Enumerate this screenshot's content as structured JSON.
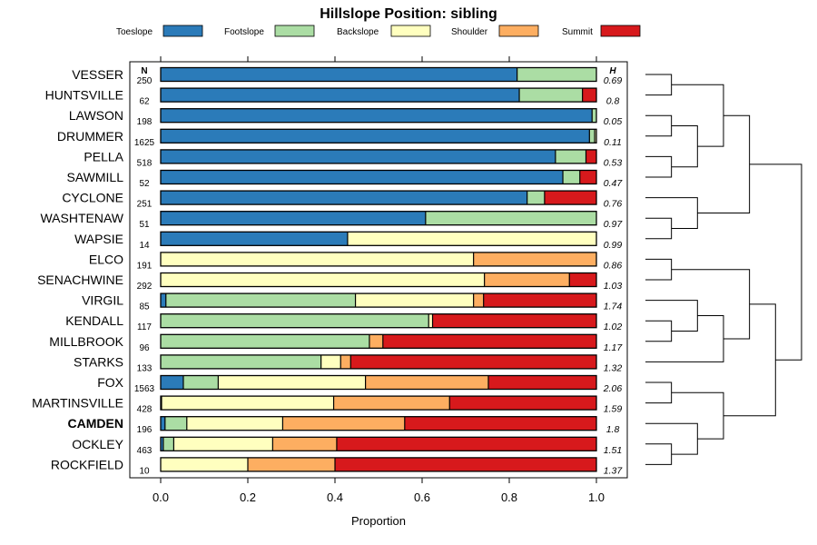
{
  "chart_data": {
    "type": "bar",
    "subtype": "stacked-horizontal-proportion",
    "title": "Hillslope Position: sibling",
    "xlabel": "Proportion",
    "ylabel": "",
    "xlim": [
      0,
      1
    ],
    "xticks": [
      0.0,
      0.2,
      0.4,
      0.6,
      0.8,
      1.0
    ],
    "xtick_labels": [
      "0.0",
      "0.2",
      "0.4",
      "0.6",
      "0.8",
      "1.0"
    ],
    "legend": {
      "placement": "top",
      "entries": [
        {
          "name": "Toeslope",
          "color": "#2b7bb9"
        },
        {
          "name": "Footslope",
          "color": "#abdda4"
        },
        {
          "name": "Backslope",
          "color": "#ffffbf"
        },
        {
          "name": "Shoulder",
          "color": "#fdae61"
        },
        {
          "name": "Summit",
          "color": "#d7191c"
        }
      ]
    },
    "column_headers": {
      "n": "N",
      "h": "H"
    },
    "highlight": "CAMDEN",
    "rows": [
      {
        "name": "VESSER",
        "n": "250",
        "h": "0.69",
        "values": [
          0.818,
          0.182,
          0,
          0,
          0
        ]
      },
      {
        "name": "HUNTSVILLE",
        "n": "62",
        "h": "0.8",
        "values": [
          0.823,
          0.145,
          0,
          0,
          0.032
        ]
      },
      {
        "name": "LAWSON",
        "n": "198",
        "h": "0.05",
        "values": [
          0.99,
          0.01,
          0,
          0,
          0
        ]
      },
      {
        "name": "DRUMMER",
        "n": "1625",
        "h": "0.11",
        "values": [
          0.984,
          0.012,
          0.004,
          0,
          0
        ]
      },
      {
        "name": "PELLA",
        "n": "518",
        "h": "0.53",
        "values": [
          0.906,
          0.07,
          0,
          0,
          0.024
        ]
      },
      {
        "name": "SAWMILL",
        "n": "52",
        "h": "0.47",
        "values": [
          0.923,
          0.039,
          0,
          0,
          0.038
        ]
      },
      {
        "name": "CYCLONE",
        "n": "251",
        "h": "0.76",
        "values": [
          0.841,
          0.04,
          0,
          0,
          0.119
        ]
      },
      {
        "name": "WASHTENAW",
        "n": "51",
        "h": "0.97",
        "values": [
          0.608,
          0.392,
          0,
          0,
          0
        ]
      },
      {
        "name": "WAPSIE",
        "n": "14",
        "h": "0.99",
        "values": [
          0.429,
          0,
          0.571,
          0,
          0
        ]
      },
      {
        "name": "ELCO",
        "n": "191",
        "h": "0.86",
        "values": [
          0,
          0,
          0.718,
          0.282,
          0
        ]
      },
      {
        "name": "SENACHWINE",
        "n": "292",
        "h": "1.03",
        "values": [
          0,
          0,
          0.743,
          0.195,
          0.062
        ]
      },
      {
        "name": "VIRGIL",
        "n": "85",
        "h": "1.74",
        "values": [
          0.012,
          0.435,
          0.271,
          0.023,
          0.259
        ]
      },
      {
        "name": "KENDALL",
        "n": "117",
        "h": "1.02",
        "values": [
          0,
          0.615,
          0.009,
          0,
          0.376
        ]
      },
      {
        "name": "MILLBROOK",
        "n": "96",
        "h": "1.17",
        "values": [
          0,
          0.479,
          0,
          0.031,
          0.49
        ]
      },
      {
        "name": "STARKS",
        "n": "133",
        "h": "1.32",
        "values": [
          0,
          0.368,
          0.045,
          0.023,
          0.564
        ]
      },
      {
        "name": "FOX",
        "n": "1563",
        "h": "2.06",
        "values": [
          0.052,
          0.08,
          0.338,
          0.282,
          0.248
        ]
      },
      {
        "name": "MARTINSVILLE",
        "n": "428",
        "h": "1.59",
        "values": [
          0.002,
          0,
          0.395,
          0.266,
          0.337
        ]
      },
      {
        "name": "CAMDEN",
        "n": "196",
        "h": "1.8",
        "values": [
          0.01,
          0.05,
          0.22,
          0.28,
          0.44
        ]
      },
      {
        "name": "OCKLEY",
        "n": "463",
        "h": "1.51",
        "values": [
          0.006,
          0.024,
          0.227,
          0.147,
          0.596
        ]
      },
      {
        "name": "ROCKFIELD",
        "n": "10",
        "h": "1.37",
        "values": [
          0,
          0,
          0.2,
          0.2,
          0.6
        ]
      }
    ],
    "dendrogram": {
      "description": "hierarchical clustering of rows by composition",
      "merge_heights_relative": true,
      "tree": [
        [
          [
            [
              0,
              1
            ],
            [
              [
                2,
                3
              ],
              [
                4,
                5
              ]
            ]
          ],
          [
            6,
            [
              7,
              8
            ]
          ]
        ],
        [
          [
            [
              9,
              10
            ],
            [
              [
                11,
                [
                  12,
                  13
                ]
              ],
              14
            ]
          ],
          [
            [
              15,
              16
            ],
            [
              17,
              [
                18,
                19
              ]
            ]
          ]
        ]
      ]
    }
  }
}
